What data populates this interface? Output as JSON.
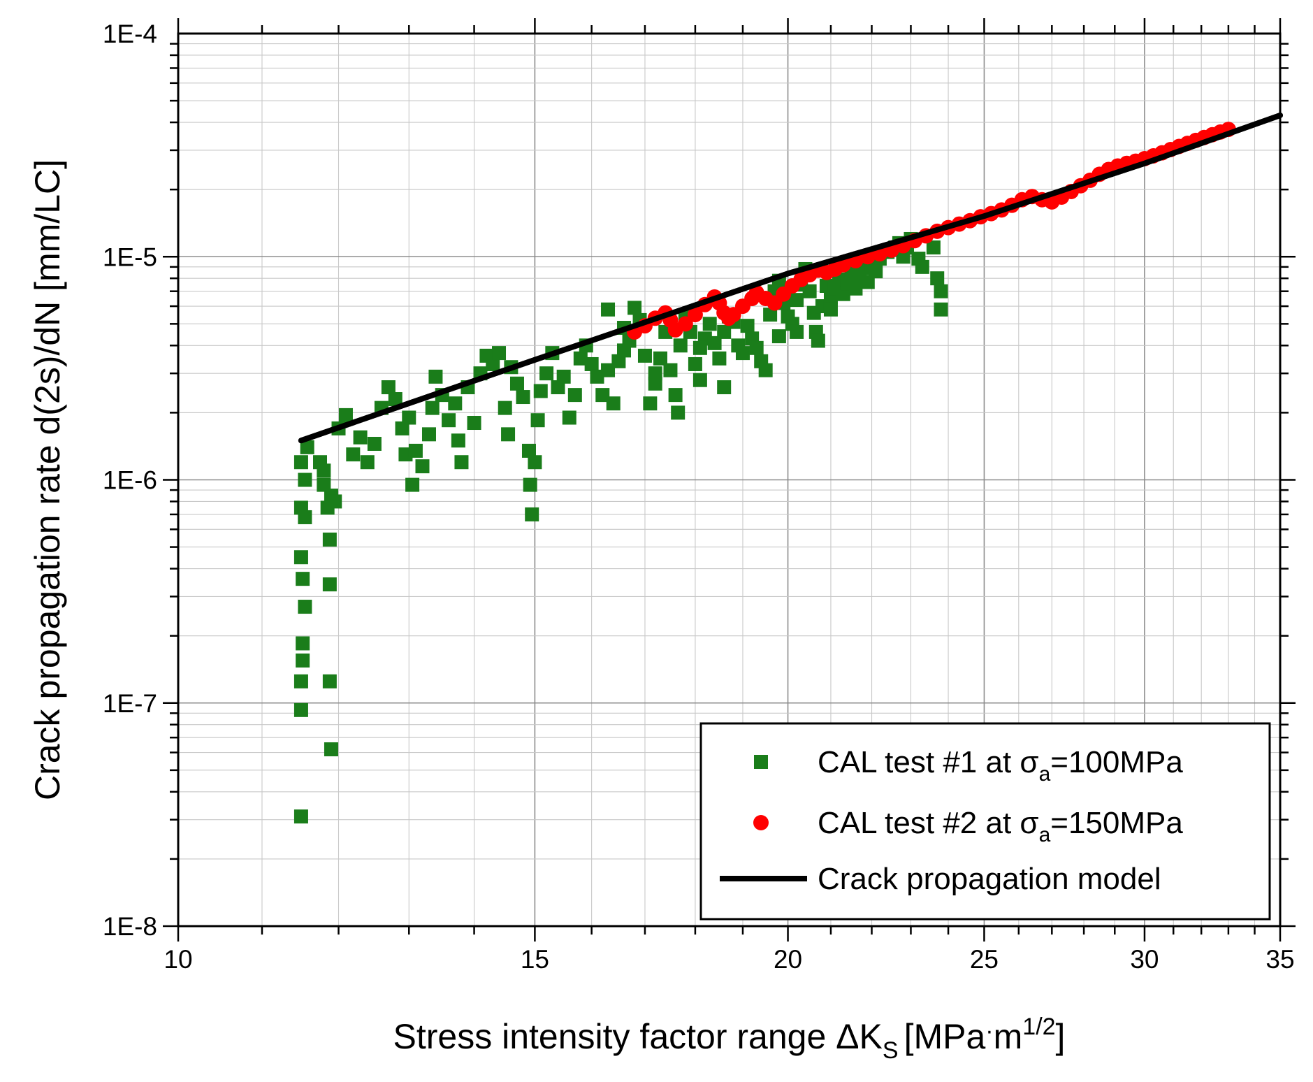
{
  "chart_data": {
    "type": "scatter",
    "xscale": "log",
    "yscale": "log",
    "xlim": [
      10,
      35
    ],
    "ylim": [
      1e-08,
      0.0001
    ],
    "grid": true,
    "legend_position": "bottom-right",
    "xlabel": {
      "main": "Stress intensity factor range ΔK",
      "sub": "S",
      "open": "[MPa",
      "dot": "·",
      "unit": "m",
      "sup": "1/2",
      "close": "]"
    },
    "ylabel": "Crack propagation rate d(2s)/dN [mm/LC]",
    "x_ticks": [
      {
        "value": 10,
        "label": "10"
      },
      {
        "value": 15,
        "label": "15"
      },
      {
        "value": 20,
        "label": "20"
      },
      {
        "value": 25,
        "label": "25"
      },
      {
        "value": 30,
        "label": "30"
      },
      {
        "value": 35,
        "label": "35"
      }
    ],
    "y_ticks": [
      {
        "value": 1e-08,
        "label": "1E-8"
      },
      {
        "value": 1e-07,
        "label": "1E-7"
      },
      {
        "value": 1e-06,
        "label": "1E-6"
      },
      {
        "value": 1e-05,
        "label": "1E-5"
      },
      {
        "value": 0.0001,
        "label": "1E-4"
      }
    ],
    "series": [
      {
        "name": "CAL test #1 at σa=100MPa",
        "legend": {
          "pre": "CAL test #1 at ",
          "sym": "σ",
          "sub": "a",
          "post": "=100MPa"
        },
        "marker": "square",
        "color": "#1a7d1a",
        "points": [
          [
            11.5,
            3.1e-08
          ],
          [
            11.5,
            9.3e-08
          ],
          [
            11.5,
            1.25e-07
          ],
          [
            11.52,
            1.55e-07
          ],
          [
            11.52,
            1.85e-07
          ],
          [
            11.55,
            2.7e-07
          ],
          [
            11.52,
            3.6e-07
          ],
          [
            11.5,
            4.5e-07
          ],
          [
            11.55,
            6.8e-07
          ],
          [
            11.5,
            7.5e-07
          ],
          [
            11.55,
            1e-06
          ],
          [
            11.5,
            1.2e-06
          ],
          [
            11.58,
            1.4e-06
          ],
          [
            11.9,
            6.2e-08
          ],
          [
            11.88,
            1.25e-07
          ],
          [
            11.88,
            3.4e-07
          ],
          [
            11.88,
            5.4e-07
          ],
          [
            11.85,
            7.5e-07
          ],
          [
            11.9,
            8.5e-07
          ],
          [
            11.8,
            9.5e-07
          ],
          [
            11.75,
            1.2e-06
          ],
          [
            11.95,
            8e-07
          ],
          [
            11.8,
            1.1e-06
          ],
          [
            12.0,
            1.7e-06
          ],
          [
            12.1,
            1.95e-06
          ],
          [
            12.2,
            1.3e-06
          ],
          [
            12.3,
            1.55e-06
          ],
          [
            12.4,
            1.2e-06
          ],
          [
            12.5,
            1.45e-06
          ],
          [
            12.6,
            2.1e-06
          ],
          [
            12.7,
            2.6e-06
          ],
          [
            12.8,
            2.3e-06
          ],
          [
            12.9,
            1.7e-06
          ],
          [
            12.95,
            1.3e-06
          ],
          [
            13.0,
            1.9e-06
          ],
          [
            13.05,
            9.5e-07
          ],
          [
            13.1,
            1.35e-06
          ],
          [
            13.2,
            1.15e-06
          ],
          [
            13.3,
            1.6e-06
          ],
          [
            13.35,
            2.1e-06
          ],
          [
            13.4,
            2.9e-06
          ],
          [
            13.5,
            2.4e-06
          ],
          [
            13.6,
            1.85e-06
          ],
          [
            13.7,
            2.2e-06
          ],
          [
            13.75,
            1.5e-06
          ],
          [
            13.8,
            1.2e-06
          ],
          [
            13.9,
            2.6e-06
          ],
          [
            14.0,
            1.8e-06
          ],
          [
            14.1,
            3e-06
          ],
          [
            14.2,
            3.6e-06
          ],
          [
            14.3,
            3.3e-06
          ],
          [
            14.4,
            3.7e-06
          ],
          [
            14.5,
            2.1e-06
          ],
          [
            14.55,
            1.6e-06
          ],
          [
            14.6,
            3.2e-06
          ],
          [
            14.7,
            2.7e-06
          ],
          [
            14.8,
            2.35e-06
          ],
          [
            14.9,
            1.35e-06
          ],
          [
            14.92,
            9.5e-07
          ],
          [
            14.95,
            7e-07
          ],
          [
            15.0,
            1.2e-06
          ],
          [
            15.05,
            1.85e-06
          ],
          [
            15.1,
            2.5e-06
          ],
          [
            15.2,
            3e-06
          ],
          [
            15.3,
            3.7e-06
          ],
          [
            15.4,
            2.6e-06
          ],
          [
            15.5,
            2.9e-06
          ],
          [
            15.6,
            1.9e-06
          ],
          [
            15.7,
            2.4e-06
          ],
          [
            15.8,
            3.5e-06
          ],
          [
            15.9,
            4e-06
          ],
          [
            16.0,
            3.3e-06
          ],
          [
            16.1,
            2.9e-06
          ],
          [
            16.2,
            2.4e-06
          ],
          [
            16.3,
            3.1e-06
          ],
          [
            16.4,
            2.2e-06
          ],
          [
            16.5,
            3.4e-06
          ],
          [
            16.6,
            3.8e-06
          ],
          [
            16.7,
            4.2e-06
          ],
          [
            16.8,
            5.9e-06
          ],
          [
            16.9,
            5.2e-06
          ],
          [
            17.0,
            3.6e-06
          ],
          [
            17.1,
            2.2e-06
          ],
          [
            17.2,
            2.7e-06
          ],
          [
            17.3,
            3.5e-06
          ],
          [
            17.4,
            4.6e-06
          ],
          [
            17.5,
            3.1e-06
          ],
          [
            17.6,
            2.4e-06
          ],
          [
            17.65,
            2e-06
          ],
          [
            17.7,
            4e-06
          ],
          [
            17.8,
            5.4e-06
          ],
          [
            17.9,
            4.6e-06
          ],
          [
            18.0,
            3.3e-06
          ],
          [
            18.1,
            2.8e-06
          ],
          [
            18.2,
            4.3e-06
          ],
          [
            18.3,
            5e-06
          ],
          [
            18.4,
            4.1e-06
          ],
          [
            18.5,
            3.5e-06
          ],
          [
            18.6,
            4.6e-06
          ],
          [
            18.7,
            5.4e-06
          ],
          [
            18.8,
            5.1e-06
          ],
          [
            18.9,
            4e-06
          ],
          [
            19.0,
            3.7e-06
          ],
          [
            19.1,
            4.9e-06
          ],
          [
            19.2,
            4.3e-06
          ],
          [
            19.3,
            3.9e-06
          ],
          [
            19.4,
            3.4e-06
          ],
          [
            19.5,
            3.1e-06
          ],
          [
            19.6,
            5.5e-06
          ],
          [
            19.7,
            7e-06
          ],
          [
            19.8,
            7.8e-06
          ],
          [
            19.9,
            6.2e-06
          ],
          [
            20.0,
            5.4e-06
          ],
          [
            20.1,
            5e-06
          ],
          [
            20.2,
            6.4e-06
          ],
          [
            20.3,
            7.5e-06
          ],
          [
            20.4,
            8.8e-06
          ],
          [
            20.5,
            7e-06
          ],
          [
            20.6,
            5.6e-06
          ],
          [
            20.65,
            4.6e-06
          ],
          [
            20.7,
            4.2e-06
          ],
          [
            20.8,
            6e-06
          ],
          [
            20.9,
            7.4e-06
          ],
          [
            21.0,
            6.6e-06
          ],
          [
            21.1,
            7.2e-06
          ],
          [
            21.2,
            7.9e-06
          ],
          [
            21.3,
            6.8e-06
          ],
          [
            21.4,
            7.6e-06
          ],
          [
            21.5,
            8.5e-06
          ],
          [
            21.6,
            7.2e-06
          ],
          [
            21.7,
            8.1e-06
          ],
          [
            21.8,
            8.9e-06
          ],
          [
            21.9,
            7.7e-06
          ],
          [
            22.0,
            9.2e-06
          ],
          [
            22.2,
            9.8e-06
          ],
          [
            22.4,
            1.05e-05
          ],
          [
            22.6,
            1.1e-05
          ],
          [
            22.7,
            1.15e-05
          ],
          [
            22.8,
            1e-05
          ],
          [
            22.9,
            1.1e-05
          ],
          [
            23.0,
            1.2e-05
          ],
          [
            23.2,
            9.8e-06
          ],
          [
            23.3,
            9e-06
          ],
          [
            23.6,
            1.1e-05
          ],
          [
            23.7,
            8e-06
          ],
          [
            23.8,
            7e-06
          ],
          [
            23.8,
            5.8e-06
          ],
          [
            16.3,
            5.8e-06
          ],
          [
            16.6,
            4.8e-06
          ],
          [
            17.2,
            3e-06
          ],
          [
            18.1,
            3.9e-06
          ],
          [
            18.6,
            2.6e-06
          ],
          [
            19.8,
            4.4e-06
          ],
          [
            20.2,
            4.6e-06
          ],
          [
            21.0,
            5.8e-06
          ],
          [
            22.1,
            8.6e-06
          ]
        ]
      },
      {
        "name": "CAL test #2 at σa=150MPa",
        "legend": {
          "pre": "CAL test #2 at ",
          "sym": "σ",
          "sub": "a",
          "post": "=150MPa"
        },
        "marker": "circle",
        "color": "#ff0000",
        "points": [
          [
            16.8,
            4.6e-06
          ],
          [
            17.0,
            4.9e-06
          ],
          [
            17.2,
            5.3e-06
          ],
          [
            17.4,
            5.6e-06
          ],
          [
            17.5,
            5.2e-06
          ],
          [
            17.6,
            4.7e-06
          ],
          [
            17.8,
            5e-06
          ],
          [
            18.0,
            5.5e-06
          ],
          [
            18.2,
            6.1e-06
          ],
          [
            18.4,
            6.6e-06
          ],
          [
            18.5,
            6.2e-06
          ],
          [
            18.6,
            5.6e-06
          ],
          [
            18.7,
            5.3e-06
          ],
          [
            18.8,
            5.5e-06
          ],
          [
            19.0,
            6e-06
          ],
          [
            19.2,
            6.5e-06
          ],
          [
            19.3,
            6.9e-06
          ],
          [
            19.5,
            6.5e-06
          ],
          [
            19.7,
            6.2e-06
          ],
          [
            19.9,
            6.8e-06
          ],
          [
            20.1,
            7.4e-06
          ],
          [
            20.3,
            7.9e-06
          ],
          [
            20.5,
            8.3e-06
          ],
          [
            20.7,
            8.7e-06
          ],
          [
            20.9,
            8.5e-06
          ],
          [
            21.1,
            8.8e-06
          ],
          [
            21.3,
            9.2e-06
          ],
          [
            21.6,
            9.6e-06
          ],
          [
            21.9,
            1e-05
          ],
          [
            22.2,
            1.03e-05
          ],
          [
            22.5,
            1.07e-05
          ],
          [
            22.8,
            1.12e-05
          ],
          [
            23.1,
            1.18e-05
          ],
          [
            23.4,
            1.24e-05
          ],
          [
            23.7,
            1.3e-05
          ],
          [
            24.0,
            1.35e-05
          ],
          [
            24.3,
            1.4e-05
          ],
          [
            24.6,
            1.45e-05
          ],
          [
            24.9,
            1.51e-05
          ],
          [
            25.2,
            1.56e-05
          ],
          [
            25.5,
            1.62e-05
          ],
          [
            25.8,
            1.7e-05
          ],
          [
            26.1,
            1.8e-05
          ],
          [
            26.4,
            1.86e-05
          ],
          [
            26.7,
            1.8e-05
          ],
          [
            27.0,
            1.76e-05
          ],
          [
            27.3,
            1.85e-05
          ],
          [
            27.6,
            1.96e-05
          ],
          [
            27.9,
            2.08e-05
          ],
          [
            28.2,
            2.2e-05
          ],
          [
            28.5,
            2.34e-05
          ],
          [
            28.8,
            2.46e-05
          ],
          [
            29.1,
            2.55e-05
          ],
          [
            29.4,
            2.62e-05
          ],
          [
            29.7,
            2.68e-05
          ],
          [
            30.0,
            2.75e-05
          ],
          [
            30.3,
            2.83e-05
          ],
          [
            30.6,
            2.92e-05
          ],
          [
            30.9,
            3.02e-05
          ],
          [
            31.2,
            3.12e-05
          ],
          [
            31.5,
            3.22e-05
          ],
          [
            31.8,
            3.32e-05
          ],
          [
            32.1,
            3.42e-05
          ],
          [
            32.4,
            3.52e-05
          ],
          [
            32.7,
            3.62e-05
          ],
          [
            33.0,
            3.72e-05
          ]
        ]
      },
      {
        "name": "Crack propagation model",
        "marker": "line",
        "color": "#000000",
        "points": [
          [
            11.5,
            1.5e-06
          ],
          [
            15,
            3.45e-06
          ],
          [
            20,
            8.4e-06
          ],
          [
            25,
            1.52e-05
          ],
          [
            30,
            2.62e-05
          ],
          [
            35,
            4.3e-05
          ]
        ]
      }
    ]
  }
}
